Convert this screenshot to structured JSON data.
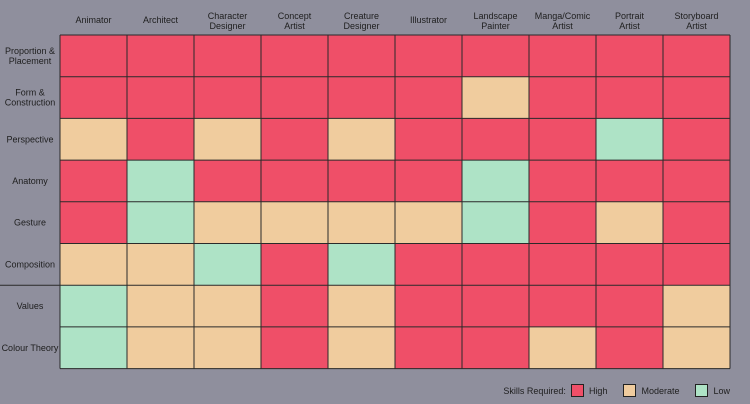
{
  "chart_data": {
    "type": "heatmap",
    "columns": [
      [
        "Animator"
      ],
      [
        "Architect"
      ],
      [
        "Character",
        "Designer"
      ],
      [
        "Concept",
        "Artist"
      ],
      [
        "Creature",
        "Designer"
      ],
      [
        "Illustrator"
      ],
      [
        "Landscape",
        "Painter"
      ],
      [
        "Manga/Comic",
        "Artist"
      ],
      [
        "Portrait",
        "Artist"
      ],
      [
        "Storyboard",
        "Artist"
      ]
    ],
    "rows": [
      [
        "Proportion &",
        "Placement"
      ],
      [
        "Form &",
        "Construction"
      ],
      [
        "Perspective"
      ],
      [
        "Anatomy"
      ],
      [
        "Gesture"
      ],
      [
        "Composition"
      ],
      [
        "Values"
      ],
      [
        "Colour Theory"
      ]
    ],
    "levels": {
      "H": {
        "label": "High",
        "color": "#ef4f68"
      },
      "M": {
        "label": "Moderate",
        "color": "#f0cc9e"
      },
      "L": {
        "label": "Low",
        "color": "#aee3c6"
      }
    },
    "values": [
      [
        "H",
        "H",
        "H",
        "H",
        "H",
        "H",
        "H",
        "H",
        "H",
        "H"
      ],
      [
        "H",
        "H",
        "H",
        "H",
        "H",
        "H",
        "M",
        "H",
        "H",
        "H"
      ],
      [
        "M",
        "H",
        "M",
        "H",
        "M",
        "H",
        "H",
        "H",
        "L",
        "H"
      ],
      [
        "H",
        "L",
        "H",
        "H",
        "H",
        "H",
        "L",
        "H",
        "H",
        "H"
      ],
      [
        "H",
        "L",
        "M",
        "M",
        "M",
        "M",
        "L",
        "H",
        "M",
        "H"
      ],
      [
        "M",
        "M",
        "L",
        "H",
        "L",
        "H",
        "H",
        "H",
        "H",
        "H"
      ],
      [
        "L",
        "M",
        "M",
        "H",
        "M",
        "H",
        "H",
        "H",
        "H",
        "M"
      ],
      [
        "L",
        "M",
        "M",
        "H",
        "M",
        "H",
        "H",
        "M",
        "H",
        "M"
      ]
    ]
  },
  "legend": {
    "title": "Skills Required:",
    "items": [
      {
        "label": "High",
        "color": "#ef4f68"
      },
      {
        "label": "Moderate",
        "color": "#f0cc9e"
      },
      {
        "label": "Low",
        "color": "#aee3c6"
      }
    ]
  }
}
